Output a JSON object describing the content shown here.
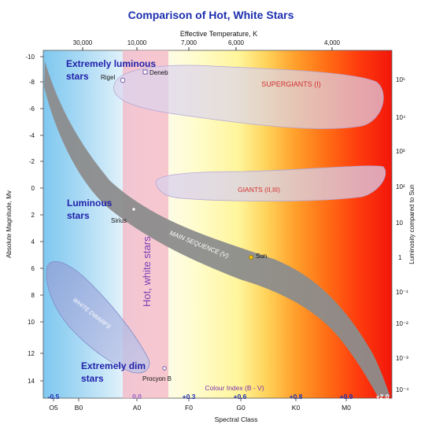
{
  "title": "Comparison of Hot, White Stars",
  "axes": {
    "top_label": "Effective Temperature, K",
    "top_ticks": [
      "30,000",
      "10,000",
      "7,000",
      "6,000",
      "4,000"
    ],
    "left_label": "Absolute Magnitude, Mv",
    "left_ticks": [
      "-10",
      "-8",
      "-6",
      "-4",
      "-2",
      "0",
      "2",
      "4",
      "6",
      "8",
      "10",
      "12",
      "14"
    ],
    "right_label": "Luminosity compared to Sun",
    "right_ticks": [
      "10⁵",
      "10⁴",
      "10³",
      "10²",
      "10",
      "1",
      "10⁻¹",
      "10⁻²",
      "10⁻³",
      "10⁻⁴"
    ],
    "bottom_label": "Spectral Class",
    "bottom_ticks": [
      "O5",
      "B0",
      "A0",
      "F0",
      "G0",
      "K0",
      "M0"
    ],
    "colour_index_label": "Colour Index (B - V)",
    "colour_index_ticks": [
      "-0.5",
      "0.0",
      "+0.3",
      "+0.6",
      "+0.8",
      "+0.9",
      "+2.0"
    ]
  },
  "regions": {
    "supergiants": "SUPERGIANTS (I)",
    "giants": "GIANTS (II,III)",
    "main_sequence": "MAIN SEQUENCE (V)",
    "white_dwarfs": "WHITE DWARFS",
    "hot_white_stars": "Hot, white stars"
  },
  "annotations": {
    "extremely_luminous": [
      "Extremely luminous",
      "stars"
    ],
    "luminous": [
      "Luminous",
      "stars"
    ],
    "extremely_dim": [
      "Extremely dim",
      "stars"
    ]
  },
  "stars": {
    "rigel": "Rigel",
    "deneb": "Deneb",
    "sirius": "Sirius",
    "sun": "Sun",
    "procyon_b": "Procyon B"
  },
  "colors": {
    "title": "#1d2fae",
    "annotation": "#2222aa",
    "region_text": "#d23030",
    "hot_white_text": "#7a3fb5",
    "colour_index_text": "#7a2fb0"
  }
}
